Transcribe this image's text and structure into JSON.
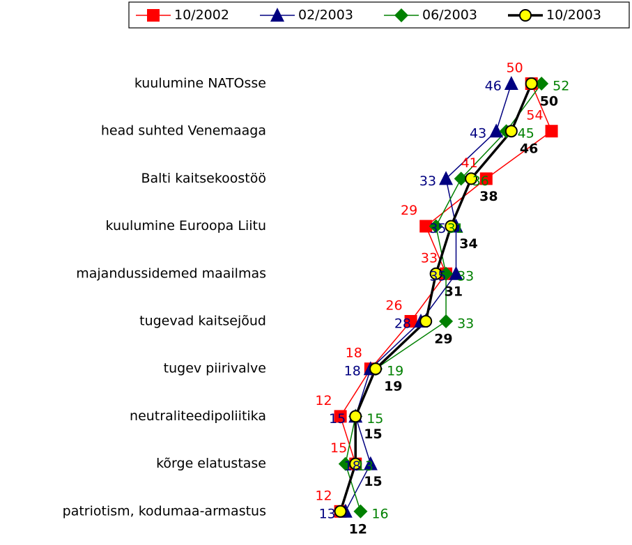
{
  "chart_data": {
    "type": "line",
    "orientation": "horizontal",
    "categories": [
      "kuulumine NATOsse",
      "head suhted Venemaaga",
      "Balti kaitsekoostöö",
      "kuulumine Euroopa Liitu",
      "majandussidemed maailmas",
      "tugevad kaitsejõud",
      "tugev piirivalve",
      "neutraliteedipoliitika",
      "kõrge elatustase",
      "patriotism, kodumaa-armastus"
    ],
    "series": [
      {
        "name": "10/2002",
        "color": "#ff0000",
        "marker": "square",
        "line_width": 1.5,
        "values": [
          50,
          54,
          41,
          29,
          33,
          26,
          18,
          12,
          15,
          12
        ]
      },
      {
        "name": "02/2003",
        "color": "#000080",
        "marker": "triangle",
        "line_width": 1.5,
        "values": [
          46,
          43,
          33,
          35,
          35,
          28,
          18,
          15,
          18,
          13
        ]
      },
      {
        "name": "06/2003",
        "color": "#008000",
        "marker": "diamond",
        "line_width": 1.5,
        "values": [
          52,
          45,
          36,
          31,
          33,
          33,
          19,
          15,
          13,
          16
        ]
      },
      {
        "name": "10/2003",
        "color": "#000000",
        "marker": "circle",
        "line_width": 3.5,
        "values": [
          50,
          46,
          38,
          34,
          31,
          29,
          19,
          15,
          15,
          12
        ]
      }
    ],
    "xlim": [
      0,
      70
    ],
    "legend": "top"
  }
}
